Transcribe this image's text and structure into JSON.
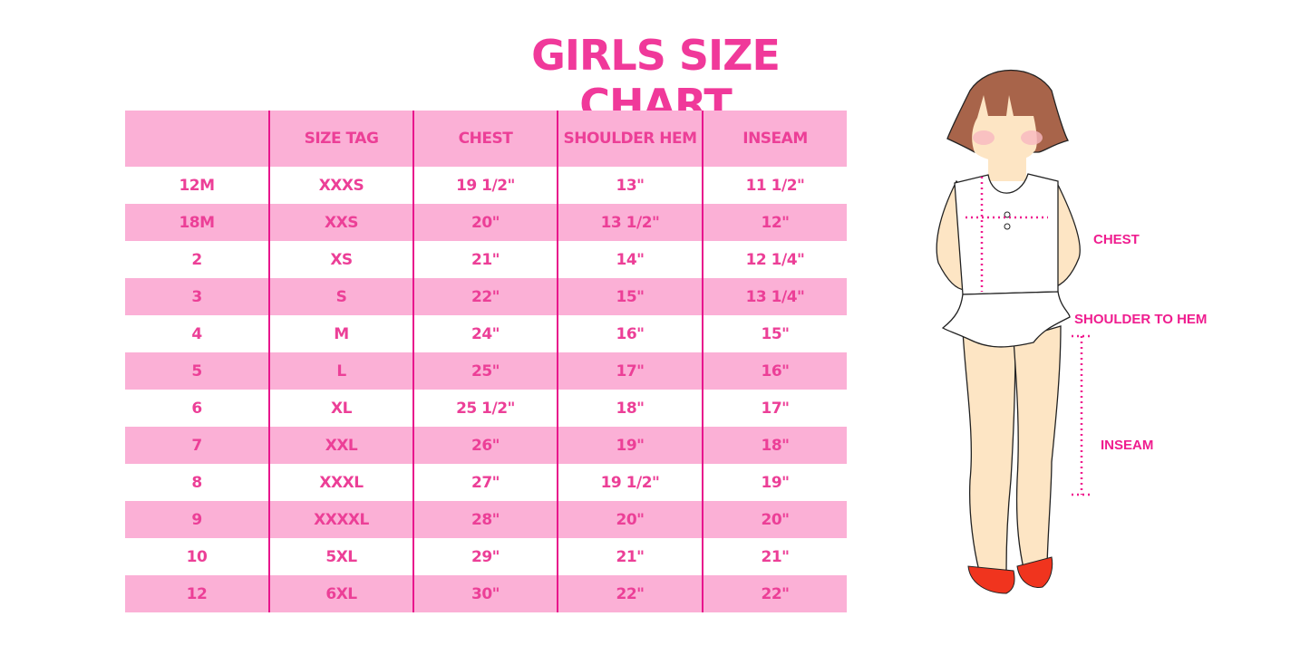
{
  "title": "GIRLS SIZE CHART",
  "colors": {
    "accent": "#ec3f97",
    "row_pink": "#fbb0d6",
    "divider": "#e8158c"
  },
  "table": {
    "headers": [
      "",
      "SIZE TAG",
      "CHEST",
      "SHOULDER HEM",
      "INSEAM"
    ],
    "rows": [
      [
        "12M",
        "XXXS",
        "19 1/2\"",
        "13\"",
        "11 1/2\""
      ],
      [
        "18M",
        "XXS",
        "20\"",
        "13 1/2\"",
        "12\""
      ],
      [
        "2",
        "XS",
        "21\"",
        "14\"",
        "12 1/4\""
      ],
      [
        "3",
        "S",
        "22\"",
        "15\"",
        "13 1/4\""
      ],
      [
        "4",
        "M",
        "24\"",
        "16\"",
        "15\""
      ],
      [
        "5",
        "L",
        "25\"",
        "17\"",
        "16\""
      ],
      [
        "6",
        "XL",
        "25 1/2\"",
        "18\"",
        "17\""
      ],
      [
        "7",
        "XXL",
        "26\"",
        "19\"",
        "18\""
      ],
      [
        "8",
        "XXXL",
        "27\"",
        "19 1/2\"",
        "19\""
      ],
      [
        "9",
        "XXXXL",
        "28\"",
        "20\"",
        "20\""
      ],
      [
        "10",
        "5XL",
        "29\"",
        "21\"",
        "21\""
      ],
      [
        "12",
        "6XL",
        "30\"",
        "22\"",
        "22\""
      ]
    ]
  },
  "illustration": {
    "labels": {
      "chest": "CHEST",
      "shoulder": "SHOULDER TO HEM",
      "inseam": "INSEAM"
    }
  }
}
